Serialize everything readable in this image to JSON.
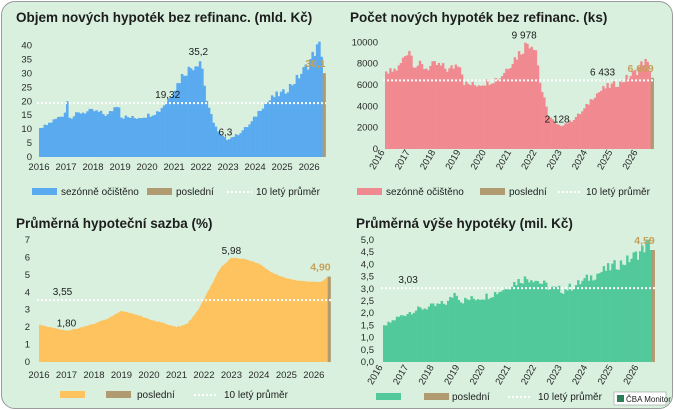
{
  "colors": {
    "background": "#d8f0dd",
    "last": "#b09a70",
    "last_label": "#c6a15b",
    "avg_line": "#ffffff"
  },
  "chart_data": [
    {
      "id": "c1",
      "type": "bar",
      "title": "Objem nových hypoték bez refinanc. (mld. Kč)",
      "color": "#5aaaf0",
      "y_ticks": [
        "0",
        "5",
        "10",
        "15",
        "20",
        "25",
        "30",
        "35",
        "40"
      ],
      "ylim": [
        0,
        42
      ],
      "x_ticks": [
        "2016",
        "2017",
        "2018",
        "2019",
        "2020",
        "2021",
        "2022",
        "2023",
        "2024",
        "2025",
        "2026"
      ],
      "x_start": 2016.0,
      "x_end": 2026.55,
      "avg": 19.32,
      "avg_label": "19,32",
      "last": 30.1,
      "last_label": "30,1",
      "annotations": [
        {
          "text": "35,2",
          "x": 2021.9,
          "y": 35.2
        },
        {
          "text": "6,3",
          "x": 2022.9,
          "y": 6.3
        }
      ],
      "series": [
        {
          "t": 2016.0,
          "v": 10.0
        },
        {
          "t": 2016.4,
          "v": 12.5
        },
        {
          "t": 2016.9,
          "v": 15.5
        },
        {
          "t": 2017.0,
          "v": 20.0
        },
        {
          "t": 2017.1,
          "v": 14.0
        },
        {
          "t": 2017.5,
          "v": 16.0
        },
        {
          "t": 2018.0,
          "v": 16.5
        },
        {
          "t": 2018.5,
          "v": 15.0
        },
        {
          "t": 2018.9,
          "v": 19.5
        },
        {
          "t": 2019.0,
          "v": 14.5
        },
        {
          "t": 2019.5,
          "v": 14.0
        },
        {
          "t": 2020.0,
          "v": 15.0
        },
        {
          "t": 2020.4,
          "v": 16.5
        },
        {
          "t": 2020.9,
          "v": 23.0
        },
        {
          "t": 2021.3,
          "v": 30.0
        },
        {
          "t": 2021.7,
          "v": 33.0
        },
        {
          "t": 2021.95,
          "v": 35.2
        },
        {
          "t": 2022.2,
          "v": 18.0
        },
        {
          "t": 2022.6,
          "v": 8.5
        },
        {
          "t": 2022.9,
          "v": 6.3
        },
        {
          "t": 2023.3,
          "v": 8.0
        },
        {
          "t": 2023.8,
          "v": 12.0
        },
        {
          "t": 2024.2,
          "v": 18.0
        },
        {
          "t": 2024.7,
          "v": 22.0
        },
        {
          "t": 2025.0,
          "v": 23.0
        },
        {
          "t": 2025.5,
          "v": 28.0
        },
        {
          "t": 2025.9,
          "v": 33.0
        },
        {
          "t": 2026.2,
          "v": 38.5
        },
        {
          "t": 2026.35,
          "v": 40.0
        },
        {
          "t": 2026.5,
          "v": 34.0
        }
      ],
      "legend": [
        "sezónně očištěno",
        "poslední",
        "10 letý průměr"
      ]
    },
    {
      "id": "c2",
      "type": "bar",
      "title": "Počet nových hypoték bez refinanc. (ks)",
      "color": "#f08a90",
      "y_ticks": [
        "0",
        "2000",
        "4000",
        "6000",
        "8000",
        "10000"
      ],
      "ylim": [
        0,
        10400
      ],
      "x_ticks": [
        "2016",
        "2017",
        "2018",
        "2019",
        "2020",
        "2021",
        "2022",
        "2023",
        "2024",
        "2025",
        "2026"
      ],
      "x_start": 2016.0,
      "x_end": 2026.55,
      "avg": 6433,
      "avg_label": "6 433",
      "last": 6669,
      "last_label": "6 669",
      "annotations": [
        {
          "text": "9 978",
          "x": 2021.5,
          "y": 9978
        },
        {
          "text": "2 128",
          "x": 2022.8,
          "y": 2128
        }
      ],
      "series": [
        {
          "t": 2016.0,
          "v": 7000
        },
        {
          "t": 2016.5,
          "v": 7600
        },
        {
          "t": 2016.9,
          "v": 9500
        },
        {
          "t": 2017.1,
          "v": 8000
        },
        {
          "t": 2017.6,
          "v": 7600
        },
        {
          "t": 2018.0,
          "v": 7900
        },
        {
          "t": 2018.5,
          "v": 7400
        },
        {
          "t": 2018.9,
          "v": 8200
        },
        {
          "t": 2019.1,
          "v": 6100
        },
        {
          "t": 2019.5,
          "v": 6000
        },
        {
          "t": 2020.0,
          "v": 6300
        },
        {
          "t": 2020.5,
          "v": 6700
        },
        {
          "t": 2020.9,
          "v": 8000
        },
        {
          "t": 2021.3,
          "v": 9100
        },
        {
          "t": 2021.6,
          "v": 9978
        },
        {
          "t": 2021.9,
          "v": 9700
        },
        {
          "t": 2022.1,
          "v": 6000
        },
        {
          "t": 2022.4,
          "v": 3200
        },
        {
          "t": 2022.8,
          "v": 2128
        },
        {
          "t": 2023.3,
          "v": 2600
        },
        {
          "t": 2023.8,
          "v": 3600
        },
        {
          "t": 2024.2,
          "v": 5000
        },
        {
          "t": 2024.7,
          "v": 5800
        },
        {
          "t": 2025.0,
          "v": 6000
        },
        {
          "t": 2025.5,
          "v": 6600
        },
        {
          "t": 2025.9,
          "v": 7300
        },
        {
          "t": 2026.2,
          "v": 8300
        },
        {
          "t": 2026.35,
          "v": 7800
        },
        {
          "t": 2026.5,
          "v": 7200
        }
      ],
      "legend": [
        "sezónně očištěno",
        "poslední",
        "10 letý průměr"
      ]
    },
    {
      "id": "c3",
      "type": "area",
      "title": "Průměrná hypoteční sazba (%)",
      "color": "#fec25e",
      "y_ticks": [
        "0",
        "1",
        "2",
        "3",
        "4",
        "5",
        "6",
        "7"
      ],
      "ylim": [
        0,
        7
      ],
      "x_ticks": [
        "2016",
        "2017",
        "2018",
        "2019",
        "2020",
        "2021",
        "2022",
        "2023",
        "2024",
        "2025",
        "2026"
      ],
      "x_start": 2016.0,
      "x_end": 2026.55,
      "avg": 3.55,
      "avg_label": "3,55",
      "last": 4.9,
      "last_label": "4,90",
      "annotations": [
        {
          "text": "1,80",
          "x": 2017.0,
          "y": 1.8
        },
        {
          "text": "5,98",
          "x": 2023.0,
          "y": 5.98
        }
      ],
      "series": [
        {
          "t": 2016.0,
          "v": 2.15
        },
        {
          "t": 2016.5,
          "v": 1.95
        },
        {
          "t": 2017.0,
          "v": 1.8
        },
        {
          "t": 2017.5,
          "v": 1.95
        },
        {
          "t": 2018.0,
          "v": 2.2
        },
        {
          "t": 2018.5,
          "v": 2.5
        },
        {
          "t": 2019.0,
          "v": 2.95
        },
        {
          "t": 2019.5,
          "v": 2.75
        },
        {
          "t": 2020.0,
          "v": 2.45
        },
        {
          "t": 2020.5,
          "v": 2.25
        },
        {
          "t": 2021.0,
          "v": 2.0
        },
        {
          "t": 2021.4,
          "v": 2.2
        },
        {
          "t": 2021.8,
          "v": 3.0
        },
        {
          "t": 2022.2,
          "v": 4.2
        },
        {
          "t": 2022.6,
          "v": 5.4
        },
        {
          "t": 2023.0,
          "v": 5.98
        },
        {
          "t": 2023.5,
          "v": 5.9
        },
        {
          "t": 2024.0,
          "v": 5.65
        },
        {
          "t": 2024.5,
          "v": 5.1
        },
        {
          "t": 2025.0,
          "v": 4.8
        },
        {
          "t": 2025.5,
          "v": 4.65
        },
        {
          "t": 2026.0,
          "v": 4.6
        },
        {
          "t": 2026.3,
          "v": 4.6
        },
        {
          "t": 2026.5,
          "v": 4.9
        }
      ],
      "legend": [
        "",
        "poslední",
        "10 letý průměr"
      ]
    },
    {
      "id": "c4",
      "type": "bar",
      "title": "Průměrná výše hypotéky (mil. Kč)",
      "color": "#52c99a",
      "y_ticks": [
        "0,0",
        "0,5",
        "1,0",
        "1,5",
        "2,0",
        "2,5",
        "3,0",
        "3,5",
        "4,0",
        "4,5",
        "5,0"
      ],
      "ylim": [
        0,
        5.0
      ],
      "x_ticks": [
        "2016",
        "2017",
        "2018",
        "2019",
        "2020",
        "2021",
        "2022",
        "2023",
        "2024",
        "2025",
        "2026"
      ],
      "x_start": 2016.0,
      "x_end": 2026.55,
      "avg": 3.03,
      "avg_label": "3,03",
      "last": 4.59,
      "last_label": "4,59",
      "annotations": [],
      "series": [
        {
          "t": 2016.0,
          "v": 1.45
        },
        {
          "t": 2016.5,
          "v": 1.8
        },
        {
          "t": 2017.0,
          "v": 2.05
        },
        {
          "t": 2017.5,
          "v": 2.2
        },
        {
          "t": 2018.0,
          "v": 2.3
        },
        {
          "t": 2018.5,
          "v": 2.45
        },
        {
          "t": 2018.8,
          "v": 2.9
        },
        {
          "t": 2019.0,
          "v": 2.5
        },
        {
          "t": 2019.5,
          "v": 2.6
        },
        {
          "t": 2020.0,
          "v": 2.7
        },
        {
          "t": 2020.5,
          "v": 2.9
        },
        {
          "t": 2021.0,
          "v": 3.2
        },
        {
          "t": 2021.4,
          "v": 3.4
        },
        {
          "t": 2021.8,
          "v": 3.45
        },
        {
          "t": 2022.2,
          "v": 3.2
        },
        {
          "t": 2022.6,
          "v": 3.0
        },
        {
          "t": 2023.0,
          "v": 2.95
        },
        {
          "t": 2023.5,
          "v": 3.15
        },
        {
          "t": 2024.0,
          "v": 3.45
        },
        {
          "t": 2024.5,
          "v": 3.7
        },
        {
          "t": 2025.0,
          "v": 3.95
        },
        {
          "t": 2025.5,
          "v": 4.15
        },
        {
          "t": 2026.0,
          "v": 4.5
        },
        {
          "t": 2026.3,
          "v": 4.85
        },
        {
          "t": 2026.5,
          "v": 4.7
        }
      ],
      "legend": [
        "",
        "poslední",
        "10 letý průměr"
      ]
    }
  ],
  "brand": "ČBA Monitor"
}
